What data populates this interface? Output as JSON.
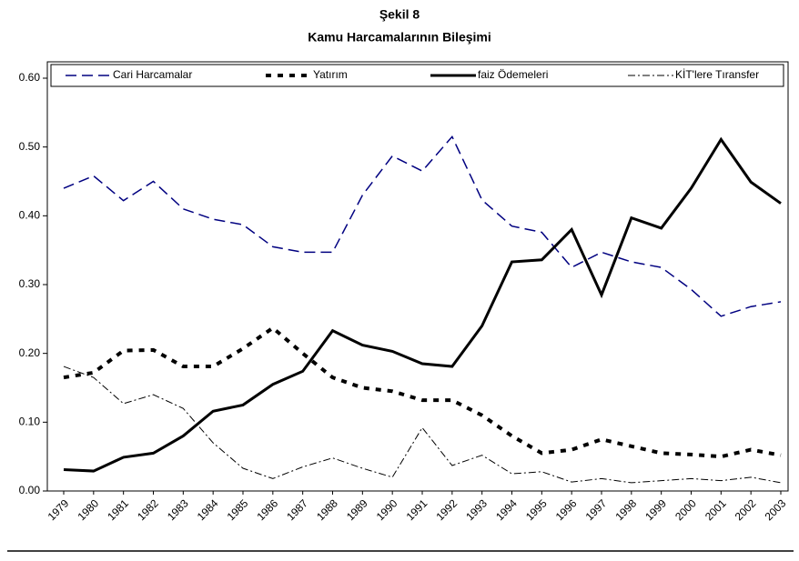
{
  "chart_data": {
    "type": "line",
    "title": "Şekil 8",
    "subtitle": "Kamu Harcamalarının Bileşimi",
    "categories": [
      "1979",
      "1980",
      "1981",
      "1982",
      "1983",
      "1984",
      "1985",
      "1986",
      "1987",
      "1988",
      "1989",
      "1990",
      "1991",
      "1992",
      "1993",
      "1994",
      "1995",
      "1996",
      "1997",
      "1998",
      "1999",
      "2000",
      "2001",
      "2002",
      "2003"
    ],
    "ylim": [
      0,
      0.6
    ],
    "yticks": [
      {
        "value": 0,
        "label": "0.00"
      },
      {
        "value": 0.1,
        "label": "0.10"
      },
      {
        "value": 0.2,
        "label": "0.20"
      },
      {
        "value": 0.3,
        "label": "0.30"
      },
      {
        "value": 0.4,
        "label": "0.40"
      },
      {
        "value": 0.5,
        "label": "0.50"
      },
      {
        "value": 0.6,
        "label": "0.60"
      }
    ],
    "grid": false,
    "legend": "top",
    "series": [
      {
        "name": "Cari Harcamalar",
        "color": "#000080",
        "style": "dashed",
        "values": [
          0.44,
          0.458,
          0.422,
          0.45,
          0.41,
          0.395,
          0.387,
          0.355,
          0.347,
          0.347,
          0.43,
          0.487,
          0.465,
          0.515,
          0.423,
          0.385,
          0.376,
          0.325,
          0.347,
          0.333,
          0.325,
          0.293,
          0.254,
          0.268,
          0.275
        ]
      },
      {
        "name": "Yatırım",
        "color": "#000000",
        "style": "dotted",
        "values": [
          0.165,
          0.172,
          0.204,
          0.205,
          0.181,
          0.181,
          0.207,
          0.237,
          0.2,
          0.165,
          0.15,
          0.145,
          0.132,
          0.132,
          0.11,
          0.08,
          0.055,
          0.06,
          0.075,
          0.065,
          0.055,
          0.053,
          0.05,
          0.06,
          0.052
        ]
      },
      {
        "name": "faiz Ödemeleri",
        "color": "#000000",
        "style": "solid",
        "values": [
          0.031,
          0.029,
          0.049,
          0.055,
          0.08,
          0.116,
          0.125,
          0.155,
          0.174,
          0.233,
          0.212,
          0.203,
          0.185,
          0.181,
          0.24,
          0.333,
          0.336,
          0.38,
          0.285,
          0.397,
          0.382,
          0.44,
          0.511,
          0.449,
          0.418
        ]
      },
      {
        "name": "KİT'lere Tıransfer",
        "color": "#000000",
        "style": "dashdot",
        "values": [
          0.181,
          0.165,
          0.127,
          0.14,
          0.12,
          0.07,
          0.033,
          0.018,
          0.035,
          0.048,
          0.033,
          0.02,
          0.092,
          0.037,
          0.052,
          0.025,
          0.028,
          0.013,
          0.018,
          0.012,
          0.015,
          0.018,
          0.015,
          0.02,
          0.012
        ]
      }
    ]
  }
}
